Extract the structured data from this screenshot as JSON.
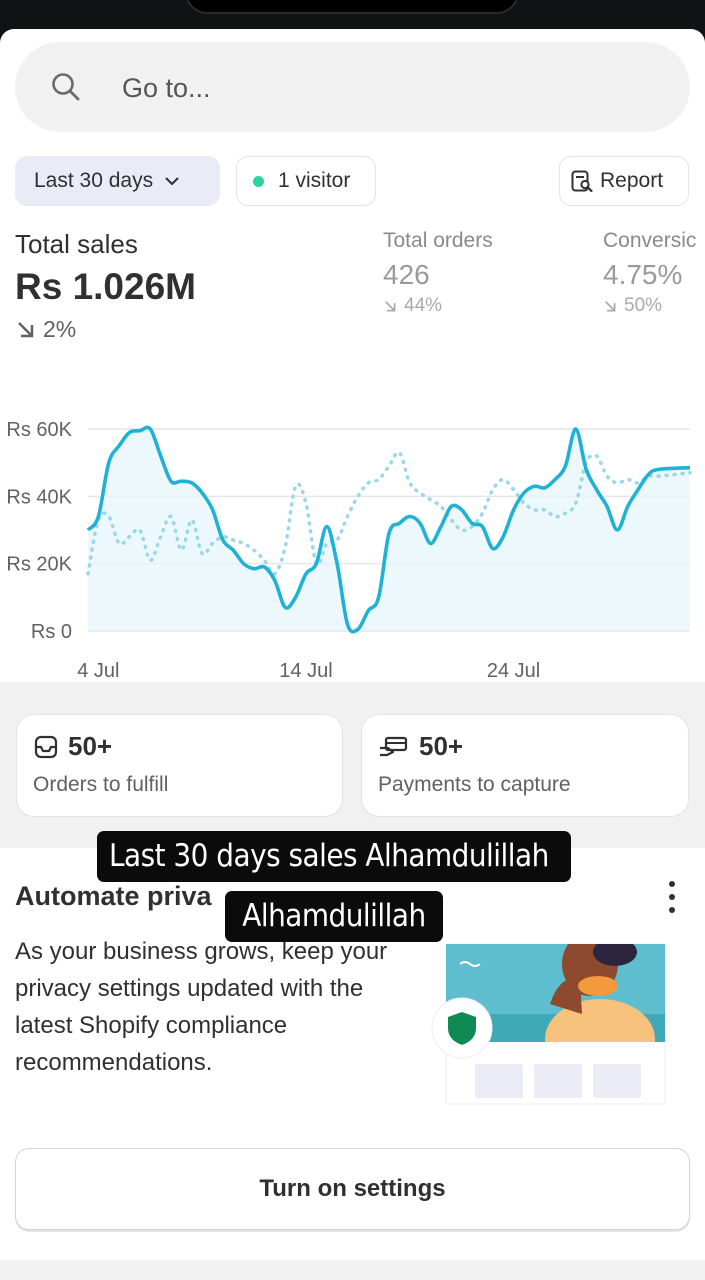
{
  "search": {
    "placeholder": "Go to..."
  },
  "filters": {
    "range_label": "Last 30 days",
    "visitors_label": "1 visitor",
    "report_label": "Report"
  },
  "metrics": {
    "total_sales": {
      "label": "Total sales",
      "value": "Rs 1.026M",
      "change": "2%"
    },
    "total_orders": {
      "label": "Total orders",
      "value": "426",
      "change": "44%"
    },
    "conversion": {
      "label": "Conversic",
      "value": "4.75%",
      "change": "50%"
    }
  },
  "chart_data": {
    "type": "line",
    "y_ticks": [
      "Rs 60K",
      "Rs 40K",
      "Rs 20K",
      "Rs 0"
    ],
    "x_ticks": [
      "4 Jul",
      "14 Jul",
      "24 Jul"
    ],
    "ylim": [
      0,
      60000
    ],
    "grid": true,
    "colors": {
      "current": "#1fb2d6",
      "previous": "#9ad7ea"
    },
    "series": [
      {
        "values": [
          [
            3.5,
            30000
          ],
          [
            4,
            34000
          ],
          [
            4.5,
            50000
          ],
          [
            5,
            55000
          ],
          [
            5.5,
            59000
          ],
          [
            6,
            59500
          ],
          [
            6.5,
            60000
          ],
          [
            7,
            52000
          ],
          [
            7.5,
            44500
          ],
          [
            8,
            44500
          ],
          [
            8.5,
            44000
          ],
          [
            9,
            41000
          ],
          [
            9.5,
            36000
          ],
          [
            10,
            27000
          ],
          [
            10.5,
            24000
          ],
          [
            11,
            20000
          ],
          [
            11.5,
            18500
          ],
          [
            12,
            19000
          ],
          [
            12.5,
            15000
          ],
          [
            13,
            7000
          ],
          [
            13.5,
            10000
          ],
          [
            14,
            17000
          ],
          [
            14.5,
            20000
          ],
          [
            15,
            31000
          ],
          [
            15.5,
            20000
          ],
          [
            16,
            2000
          ],
          [
            16.5,
            500
          ],
          [
            17,
            6000
          ],
          [
            17.5,
            10000
          ],
          [
            18,
            29000
          ],
          [
            18.5,
            32000
          ],
          [
            19,
            34000
          ],
          [
            19.5,
            32000
          ],
          [
            20,
            26000
          ],
          [
            20.5,
            31000
          ],
          [
            21,
            37000
          ],
          [
            21.5,
            36000
          ],
          [
            22,
            32000
          ],
          [
            22.5,
            31000
          ],
          [
            23,
            24500
          ],
          [
            23.5,
            28000
          ],
          [
            24,
            36000
          ],
          [
            24.5,
            41000
          ],
          [
            25,
            43000
          ],
          [
            25.5,
            42500
          ],
          [
            26,
            45000
          ],
          [
            26.5,
            49000
          ],
          [
            27,
            60000
          ],
          [
            27.5,
            48000
          ],
          [
            28,
            42000
          ],
          [
            28.5,
            37000
          ],
          [
            29,
            30000
          ],
          [
            29.5,
            37000
          ],
          [
            30,
            42000
          ],
          [
            30.5,
            46500
          ],
          [
            31,
            48000
          ],
          [
            32.5,
            48500
          ]
        ]
      },
      {
        "values": [
          [
            3.5,
            17000
          ],
          [
            4,
            33000
          ],
          [
            4.5,
            34000
          ],
          [
            5,
            26000
          ],
          [
            5.5,
            28000
          ],
          [
            6,
            30000
          ],
          [
            6.5,
            21000
          ],
          [
            7,
            28000
          ],
          [
            7.5,
            34000
          ],
          [
            8,
            24000
          ],
          [
            8.5,
            33000
          ],
          [
            9,
            23000
          ],
          [
            9.5,
            26000
          ],
          [
            10,
            28000
          ],
          [
            10.5,
            27000
          ],
          [
            11,
            26000
          ],
          [
            11.5,
            24000
          ],
          [
            12,
            21000
          ],
          [
            12.5,
            17000
          ],
          [
            13,
            25000
          ],
          [
            13.5,
            43000
          ],
          [
            14,
            38000
          ],
          [
            14.5,
            20000
          ],
          [
            15,
            26000
          ],
          [
            15.5,
            27000
          ],
          [
            16,
            34000
          ],
          [
            16.5,
            40000
          ],
          [
            17,
            44000
          ],
          [
            17.5,
            45000
          ],
          [
            18,
            49000
          ],
          [
            18.5,
            53000
          ],
          [
            19,
            44000
          ],
          [
            19.5,
            41000
          ],
          [
            20,
            39000
          ],
          [
            20.5,
            37000
          ],
          [
            21,
            33000
          ],
          [
            21.5,
            30000
          ],
          [
            22,
            31000
          ],
          [
            22.5,
            35000
          ],
          [
            23,
            42000
          ],
          [
            23.5,
            45000
          ],
          [
            24,
            42000
          ],
          [
            24.5,
            38000
          ],
          [
            25,
            36000
          ],
          [
            25.5,
            36000
          ],
          [
            26,
            34000
          ],
          [
            26.5,
            35000
          ],
          [
            27,
            38000
          ],
          [
            27.5,
            50000
          ],
          [
            28,
            52000
          ],
          [
            28.5,
            46000
          ],
          [
            29,
            44000
          ],
          [
            29.5,
            45000
          ],
          [
            30,
            44000
          ],
          [
            30.5,
            46000
          ],
          [
            31,
            46000
          ],
          [
            32.5,
            47000
          ]
        ]
      }
    ]
  },
  "tasks": [
    {
      "count": "50+",
      "label": "Orders to fulfill",
      "icon": "inbox-icon"
    },
    {
      "count": "50+",
      "label": "Payments to capture",
      "icon": "payment-icon"
    }
  ],
  "promo": {
    "title": "Automate priva",
    "body": "As your business grows, keep your privacy settings updated with the latest Shopify compliance recommendations.",
    "button_label": "Turn on settings"
  },
  "captions": {
    "line1": "Last 30 days sales Alhamdulillah",
    "line2": "Alhamdulillah"
  }
}
